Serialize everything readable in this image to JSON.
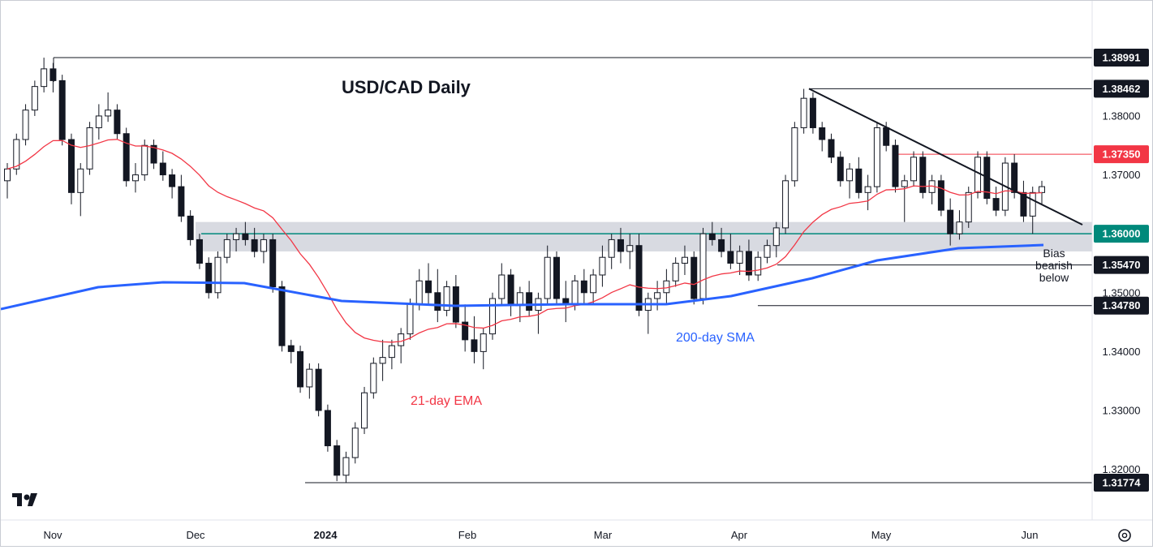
{
  "chart_data": {
    "type": "candlestick",
    "title": "USD/CAD Daily",
    "x_tick_labels": [
      "Nov",
      "Dec",
      "2024",
      "Feb",
      "Mar",
      "Apr",
      "May",
      "Jun"
    ],
    "y_tick_labels": [
      "1.38000",
      "1.37000",
      "1.35000",
      "1.34000",
      "1.33000",
      "1.32000"
    ],
    "ylim": [
      1.315,
      1.3945
    ],
    "horizontal_levels": [
      {
        "label": "1.38991",
        "value": 1.38991,
        "color": "#131722"
      },
      {
        "label": "1.38462",
        "value": 1.38462,
        "color": "#131722"
      },
      {
        "label": "1.37350",
        "value": 1.3735,
        "color": "#f23645"
      },
      {
        "label": "1.36000",
        "value": 1.36,
        "color": "#00897b"
      },
      {
        "label": "1.35470",
        "value": 1.3547,
        "color": "#131722"
      },
      {
        "label": "1.34780",
        "value": 1.3478,
        "color": "#131722"
      },
      {
        "label": "1.31774",
        "value": 1.31774,
        "color": "#131722"
      }
    ],
    "support_zone": {
      "low": 1.357,
      "high": 1.362
    },
    "annotations": {
      "ema": "21-day EMA",
      "sma": "200-day SMA",
      "bias": [
        "Bias",
        "bearish",
        "below"
      ]
    },
    "series": [
      {
        "name": "21-day EMA",
        "color": "#f23645"
      },
      {
        "name": "200-day SMA",
        "color": "#2962ff"
      }
    ],
    "candles_ohlc": [
      [
        1.369,
        1.372,
        1.366,
        1.371
      ],
      [
        1.371,
        1.377,
        1.37,
        1.376
      ],
      [
        1.376,
        1.382,
        1.375,
        1.381
      ],
      [
        1.381,
        1.386,
        1.38,
        1.385
      ],
      [
        1.385,
        1.3899,
        1.384,
        1.388
      ],
      [
        1.388,
        1.389,
        1.384,
        1.386
      ],
      [
        1.386,
        1.387,
        1.375,
        1.376
      ],
      [
        1.376,
        1.377,
        1.365,
        1.367
      ],
      [
        1.367,
        1.372,
        1.363,
        1.371
      ],
      [
        1.371,
        1.379,
        1.37,
        1.378
      ],
      [
        1.378,
        1.382,
        1.376,
        1.38
      ],
      [
        1.38,
        1.384,
        1.379,
        1.381
      ],
      [
        1.381,
        1.382,
        1.376,
        1.377
      ],
      [
        1.377,
        1.378,
        1.368,
        1.369
      ],
      [
        1.369,
        1.372,
        1.367,
        1.37
      ],
      [
        1.37,
        1.376,
        1.369,
        1.375
      ],
      [
        1.375,
        1.376,
        1.371,
        1.372
      ],
      [
        1.372,
        1.374,
        1.369,
        1.37
      ],
      [
        1.37,
        1.371,
        1.366,
        1.368
      ],
      [
        1.368,
        1.37,
        1.362,
        1.363
      ],
      [
        1.363,
        1.364,
        1.358,
        1.359
      ],
      [
        1.359,
        1.36,
        1.354,
        1.355
      ],
      [
        1.355,
        1.356,
        1.349,
        1.35
      ],
      [
        1.35,
        1.357,
        1.349,
        1.356
      ],
      [
        1.356,
        1.36,
        1.355,
        1.359
      ],
      [
        1.359,
        1.361,
        1.357,
        1.36
      ],
      [
        1.36,
        1.362,
        1.358,
        1.359
      ],
      [
        1.359,
        1.361,
        1.356,
        1.357
      ],
      [
        1.357,
        1.36,
        1.355,
        1.359
      ],
      [
        1.359,
        1.36,
        1.35,
        1.351
      ],
      [
        1.351,
        1.352,
        1.34,
        1.341
      ],
      [
        1.341,
        1.342,
        1.338,
        1.34
      ],
      [
        1.34,
        1.341,
        1.333,
        1.334
      ],
      [
        1.334,
        1.338,
        1.332,
        1.337
      ],
      [
        1.337,
        1.338,
        1.329,
        1.33
      ],
      [
        1.33,
        1.331,
        1.323,
        1.324
      ],
      [
        1.324,
        1.325,
        1.318,
        1.319
      ],
      [
        1.319,
        1.323,
        1.3177,
        1.322
      ],
      [
        1.322,
        1.328,
        1.321,
        1.327
      ],
      [
        1.327,
        1.334,
        1.326,
        1.333
      ],
      [
        1.333,
        1.339,
        1.332,
        1.338
      ],
      [
        1.338,
        1.342,
        1.335,
        1.339
      ],
      [
        1.339,
        1.342,
        1.337,
        1.341
      ],
      [
        1.341,
        1.344,
        1.338,
        1.343
      ],
      [
        1.343,
        1.349,
        1.342,
        1.348
      ],
      [
        1.348,
        1.354,
        1.347,
        1.352
      ],
      [
        1.352,
        1.355,
        1.348,
        1.35
      ],
      [
        1.35,
        1.354,
        1.345,
        1.347
      ],
      [
        1.347,
        1.352,
        1.346,
        1.351
      ],
      [
        1.351,
        1.353,
        1.344,
        1.345
      ],
      [
        1.345,
        1.348,
        1.34,
        1.342
      ],
      [
        1.342,
        1.346,
        1.338,
        1.34
      ],
      [
        1.34,
        1.344,
        1.337,
        1.343
      ],
      [
        1.343,
        1.35,
        1.342,
        1.349
      ],
      [
        1.349,
        1.355,
        1.348,
        1.353
      ],
      [
        1.353,
        1.354,
        1.346,
        1.348
      ],
      [
        1.348,
        1.351,
        1.345,
        1.35
      ],
      [
        1.35,
        1.352,
        1.346,
        1.347
      ],
      [
        1.347,
        1.35,
        1.343,
        1.349
      ],
      [
        1.349,
        1.358,
        1.348,
        1.356
      ],
      [
        1.356,
        1.357,
        1.348,
        1.349
      ],
      [
        1.349,
        1.352,
        1.345,
        1.348
      ],
      [
        1.348,
        1.353,
        1.347,
        1.352
      ],
      [
        1.352,
        1.354,
        1.348,
        1.35
      ],
      [
        1.35,
        1.354,
        1.348,
        1.353
      ],
      [
        1.353,
        1.358,
        1.351,
        1.356
      ],
      [
        1.356,
        1.36,
        1.354,
        1.359
      ],
      [
        1.359,
        1.361,
        1.355,
        1.357
      ],
      [
        1.357,
        1.36,
        1.354,
        1.358
      ],
      [
        1.358,
        1.36,
        1.346,
        1.347
      ],
      [
        1.347,
        1.35,
        1.343,
        1.349
      ],
      [
        1.349,
        1.352,
        1.347,
        1.35
      ],
      [
        1.35,
        1.354,
        1.348,
        1.352
      ],
      [
        1.352,
        1.356,
        1.351,
        1.355
      ],
      [
        1.355,
        1.358,
        1.353,
        1.356
      ],
      [
        1.356,
        1.357,
        1.348,
        1.349
      ],
      [
        1.349,
        1.361,
        1.348,
        1.36
      ],
      [
        1.36,
        1.362,
        1.358,
        1.359
      ],
      [
        1.359,
        1.361,
        1.356,
        1.357
      ],
      [
        1.357,
        1.36,
        1.354,
        1.355
      ],
      [
        1.355,
        1.358,
        1.353,
        1.357
      ],
      [
        1.357,
        1.359,
        1.352,
        1.353
      ],
      [
        1.353,
        1.357,
        1.352,
        1.356
      ],
      [
        1.356,
        1.359,
        1.355,
        1.358
      ],
      [
        1.358,
        1.362,
        1.356,
        1.361
      ],
      [
        1.361,
        1.37,
        1.36,
        1.369
      ],
      [
        1.369,
        1.379,
        1.368,
        1.378
      ],
      [
        1.378,
        1.3846,
        1.377,
        1.383
      ],
      [
        1.383,
        1.384,
        1.377,
        1.378
      ],
      [
        1.378,
        1.379,
        1.374,
        1.376
      ],
      [
        1.376,
        1.377,
        1.372,
        1.373
      ],
      [
        1.373,
        1.374,
        1.368,
        1.369
      ],
      [
        1.369,
        1.372,
        1.366,
        1.371
      ],
      [
        1.371,
        1.373,
        1.366,
        1.367
      ],
      [
        1.367,
        1.37,
        1.364,
        1.368
      ],
      [
        1.368,
        1.379,
        1.367,
        1.378
      ],
      [
        1.378,
        1.379,
        1.374,
        1.375
      ],
      [
        1.375,
        1.376,
        1.367,
        1.368
      ],
      [
        1.368,
        1.37,
        1.362,
        1.369
      ],
      [
        1.369,
        1.374,
        1.368,
        1.373
      ],
      [
        1.373,
        1.374,
        1.366,
        1.367
      ],
      [
        1.367,
        1.37,
        1.365,
        1.369
      ],
      [
        1.369,
        1.37,
        1.363,
        1.364
      ],
      [
        1.364,
        1.366,
        1.358,
        1.36
      ],
      [
        1.36,
        1.364,
        1.359,
        1.362
      ],
      [
        1.362,
        1.368,
        1.361,
        1.367
      ],
      [
        1.367,
        1.374,
        1.366,
        1.373
      ],
      [
        1.373,
        1.374,
        1.365,
        1.366
      ],
      [
        1.366,
        1.368,
        1.363,
        1.364
      ],
      [
        1.364,
        1.373,
        1.363,
        1.372
      ],
      [
        1.372,
        1.3735,
        1.366,
        1.367
      ],
      [
        1.367,
        1.369,
        1.362,
        1.363
      ],
      [
        1.363,
        1.368,
        1.36,
        1.367
      ],
      [
        1.367,
        1.369,
        1.365,
        1.368
      ]
    ]
  },
  "toolbar": {
    "logo_text": "TV",
    "settings_icon": "gear-icon"
  }
}
